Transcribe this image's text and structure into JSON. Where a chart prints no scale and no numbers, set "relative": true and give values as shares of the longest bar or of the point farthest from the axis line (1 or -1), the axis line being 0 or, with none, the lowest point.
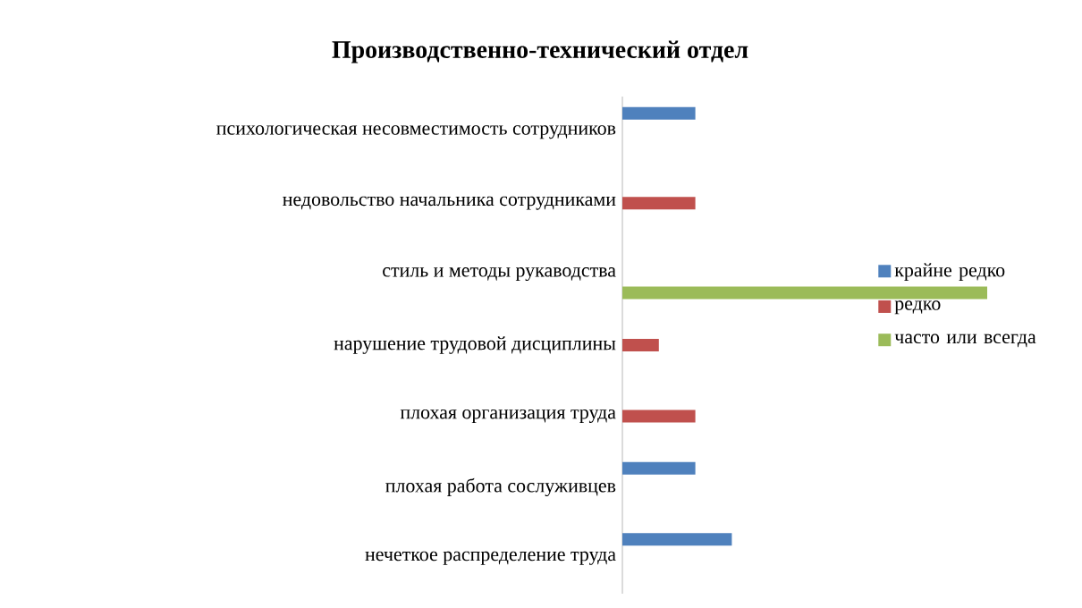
{
  "chart_data": {
    "type": "bar",
    "orientation": "horizontal",
    "relative": true,
    "title": "Производственно-технический отдел",
    "categories": [
      "психологическая несовместимость сотрудников",
      "недовольство начальника сотрудниками",
      "стиль и методы рукаводства",
      "нарушение трудовой дисциплины",
      "плохая организация труда",
      "плохая работа сослуживцев",
      "нечеткое распределение труда"
    ],
    "series": [
      {
        "name": "крайне редко",
        "color": "#4f81bd",
        "values": [
          0.2,
          null,
          null,
          null,
          null,
          0.2,
          0.3
        ]
      },
      {
        "name": "редко",
        "color": "#c0504d",
        "values": [
          null,
          0.2,
          null,
          0.1,
          0.2,
          null,
          null
        ]
      },
      {
        "name": "часто или всегда",
        "color": "#9bbb59",
        "values": [
          null,
          null,
          1,
          null,
          null,
          null,
          null
        ]
      }
    ],
    "legend": "right"
  }
}
